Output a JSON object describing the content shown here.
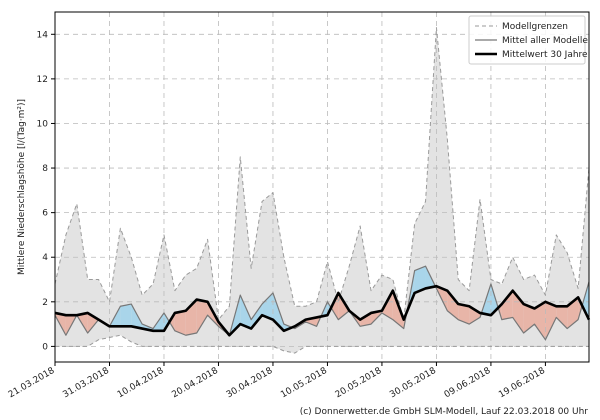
{
  "chart_data": {
    "type": "line",
    "y_label": "Mittlere Niederschlagshöhe [l/(Tag·m²)]",
    "footer": "(c) Donnerwetter.de GmbH SLM-Modell, Lauf 22.03.2018 00 Uhr",
    "x": [
      "21.03.2018",
      "23.03.2018",
      "25.03.2018",
      "27.03.2018",
      "29.03.2018",
      "31.03.2018",
      "02.04.2018",
      "04.04.2018",
      "06.04.2018",
      "08.04.2018",
      "10.04.2018",
      "12.04.2018",
      "14.04.2018",
      "16.04.2018",
      "18.04.2018",
      "20.04.2018",
      "22.04.2018",
      "24.04.2018",
      "26.04.2018",
      "28.04.2018",
      "30.04.2018",
      "02.05.2018",
      "04.05.2018",
      "06.05.2018",
      "08.05.2018",
      "10.05.2018",
      "12.05.2018",
      "14.05.2018",
      "16.05.2018",
      "18.05.2018",
      "20.05.2018",
      "22.05.2018",
      "24.05.2018",
      "26.05.2018",
      "28.05.2018",
      "30.05.2018",
      "01.06.2018",
      "03.06.2018",
      "05.06.2018",
      "07.06.2018",
      "09.06.2018",
      "11.06.2018",
      "13.06.2018",
      "15.06.2018",
      "17.06.2018",
      "19.06.2018",
      "21.06.2018",
      "23.06.2018",
      "25.06.2018",
      "27.06.2018"
    ],
    "xticks": [
      "21.03.2018",
      "31.03.2018",
      "10.04.2018",
      "20.04.2018",
      "30.04.2018",
      "10.05.2018",
      "20.05.2018",
      "30.05.2018",
      "09.06.2018",
      "19.06.2018"
    ],
    "ylim": [
      -0.7,
      15
    ],
    "yticks": [
      0,
      2,
      4,
      6,
      8,
      10,
      12,
      14
    ],
    "grid": true,
    "legend": "upper right",
    "band_color": "#e3e3e3",
    "above_color": "#a9d5ea",
    "below_color": "#e8b5a8",
    "series": [
      {
        "name": "Modellgrenzen",
        "color": "#9a9a9a",
        "linestyle": "dashed",
        "linewidth": 1,
        "values": [
          2.8,
          5.0,
          6.4,
          3.0,
          3.0,
          2.0,
          5.3,
          4.0,
          2.3,
          2.8,
          5.0,
          2.5,
          3.2,
          3.5,
          4.8,
          1.2,
          1.8,
          8.5,
          3.5,
          6.5,
          6.9,
          4.0,
          1.8,
          1.8,
          2.0,
          3.8,
          2.0,
          3.6,
          5.4,
          2.5,
          3.2,
          3.0,
          1.2,
          5.5,
          6.5,
          14.3,
          9.3,
          3.0,
          2.5,
          6.6,
          3.0,
          2.8,
          4.0,
          3.0,
          3.2,
          2.3,
          5.0,
          4.2,
          2.6,
          8.0
        ],
        "lower_values": [
          0,
          0,
          0,
          0,
          0.3,
          0.4,
          0.5,
          0.2,
          0,
          0,
          0,
          0,
          0,
          0,
          0,
          0,
          0,
          0,
          0,
          0,
          0,
          -0.2,
          -0.3,
          0,
          0,
          0,
          0,
          0,
          0,
          0,
          0,
          0,
          0,
          0,
          0,
          0,
          0,
          0,
          0,
          0,
          0,
          0,
          0,
          0,
          0,
          0,
          0,
          0,
          0,
          0
        ]
      },
      {
        "name": "Mittel aller Modelle",
        "color": "#777777",
        "linestyle": "solid",
        "linewidth": 1.2,
        "values": [
          1.4,
          0.5,
          1.4,
          0.6,
          1.2,
          0.9,
          1.8,
          1.9,
          1.0,
          0.8,
          1.5,
          0.7,
          0.5,
          0.6,
          1.4,
          0.9,
          0.5,
          2.3,
          1.2,
          1.9,
          2.4,
          1.0,
          0.8,
          1.1,
          0.9,
          2.0,
          1.2,
          1.6,
          0.9,
          1.0,
          1.5,
          1.2,
          0.8,
          3.4,
          3.6,
          2.6,
          1.6,
          1.2,
          1.0,
          1.3,
          2.8,
          1.2,
          1.3,
          0.6,
          1.0,
          0.3,
          1.3,
          0.8,
          1.2,
          2.9
        ]
      },
      {
        "name": "Mittelwert 30 Jahre",
        "color": "#000000",
        "linestyle": "solid",
        "linewidth": 2.6,
        "values": [
          1.5,
          1.4,
          1.4,
          1.5,
          1.2,
          0.9,
          0.9,
          0.9,
          0.8,
          0.7,
          0.7,
          1.5,
          1.6,
          2.1,
          2.0,
          1.1,
          0.5,
          1.0,
          0.8,
          1.4,
          1.2,
          0.7,
          0.9,
          1.2,
          1.3,
          1.4,
          2.4,
          1.6,
          1.2,
          1.5,
          1.6,
          2.5,
          1.2,
          2.4,
          2.6,
          2.7,
          2.5,
          1.9,
          1.8,
          1.5,
          1.4,
          1.9,
          2.5,
          1.9,
          1.7,
          2.0,
          1.8,
          1.8,
          2.2,
          1.2
        ]
      }
    ]
  }
}
